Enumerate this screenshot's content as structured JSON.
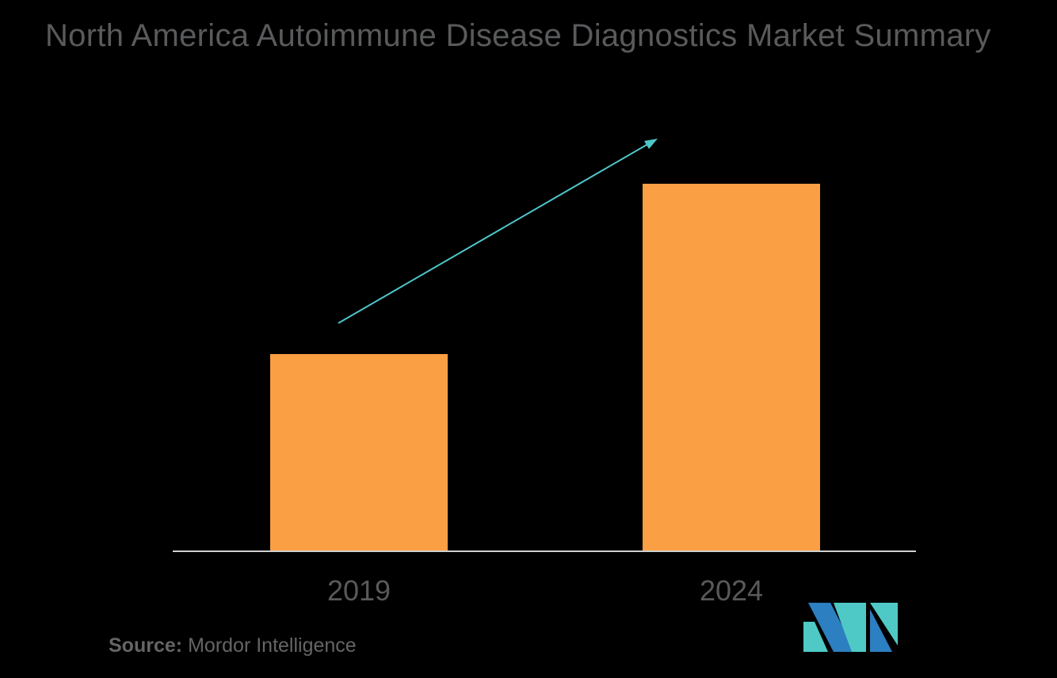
{
  "header": {
    "title": "North America Autoimmune Disease Diagnostics Market Summary"
  },
  "chart_data": {
    "type": "bar",
    "title": "North America Autoimmune Disease Diagnostics Market Summary",
    "categories": [
      "2019",
      "2024"
    ],
    "values": [
      248,
      463
    ],
    "value_note": "no y-axis or data labels shown; values are relative bar heights in pixels",
    "ylim": [
      0,
      480
    ],
    "xlabel": "",
    "ylabel": "",
    "grid": false,
    "legend": false,
    "bar_color": "#FA9F43",
    "annotations": [
      {
        "type": "trend-arrow",
        "direction": "up-right",
        "color": "#4EC6CA",
        "from": "above 2019 bar",
        "to": "above 2024 bar"
      }
    ]
  },
  "footer": {
    "source_label": "Source:",
    "source_value": "Mordor Intelligence"
  },
  "logo": {
    "name": "mordor-intelligence-logo",
    "blue": "#2C7FC0",
    "teal": "#4FC9C6"
  },
  "palette": {
    "bg_color": "#000000",
    "title_color": "#595A5C",
    "tick_color": "#58595B",
    "source_color": "#646567",
    "axis_color": "#CFCFCF",
    "bar_color": "#FA9F43",
    "arrow_color": "#4EC6CA",
    "logo_blue": "#2C7FC0",
    "logo_teal": "#4FC9C6"
  }
}
